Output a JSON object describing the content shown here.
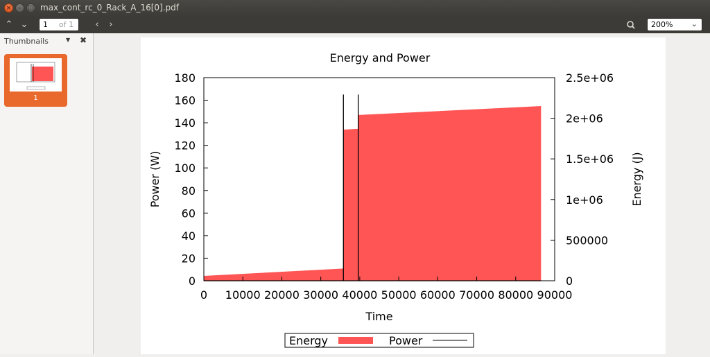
{
  "window": {
    "title": "max_cont_rc_0_Rack_A_16[0].pdf"
  },
  "toolbar": {
    "page_current": "1",
    "page_of": "of 1",
    "zoom": "200%"
  },
  "sidebar": {
    "title": "Thumbnails",
    "thumb_label": "1"
  },
  "colors": {
    "energy_fill": "#ff5555",
    "power_line": "#000000",
    "accent": "#e9692c"
  },
  "chart_data": {
    "type": "area",
    "title": "Energy and Power",
    "xlabel": "Time",
    "ylabel": "Power (W)",
    "y2label": "Energy (J)",
    "xlim": [
      0,
      90000
    ],
    "ylim": [
      0,
      180
    ],
    "y2lim": [
      0,
      2500000
    ],
    "xticks": [
      "0",
      "10000",
      "20000",
      "30000",
      "40000",
      "50000",
      "60000",
      "70000",
      "80000",
      "90000"
    ],
    "yticks": [
      "0",
      "20",
      "40",
      "60",
      "80",
      "100",
      "120",
      "140",
      "160",
      "180"
    ],
    "y2ticks": [
      "0",
      "500000",
      "1e+06",
      "1.5e+06",
      "2e+06",
      "2.5e+06"
    ],
    "legend": [
      "Energy",
      "Power"
    ],
    "series": [
      {
        "name": "Energy",
        "axis": "y2",
        "x": [
          0,
          35800,
          35800,
          39600,
          39600,
          86500
        ],
        "y": [
          60000,
          150000,
          1860000,
          1870000,
          2040000,
          2150000
        ]
      },
      {
        "name": "Power",
        "axis": "y",
        "x": [
          0,
          35800,
          35800,
          35800,
          39600,
          39600,
          39600,
          86500
        ],
        "y": [
          0,
          0,
          165,
          0,
          0,
          165,
          0,
          0
        ]
      }
    ]
  }
}
